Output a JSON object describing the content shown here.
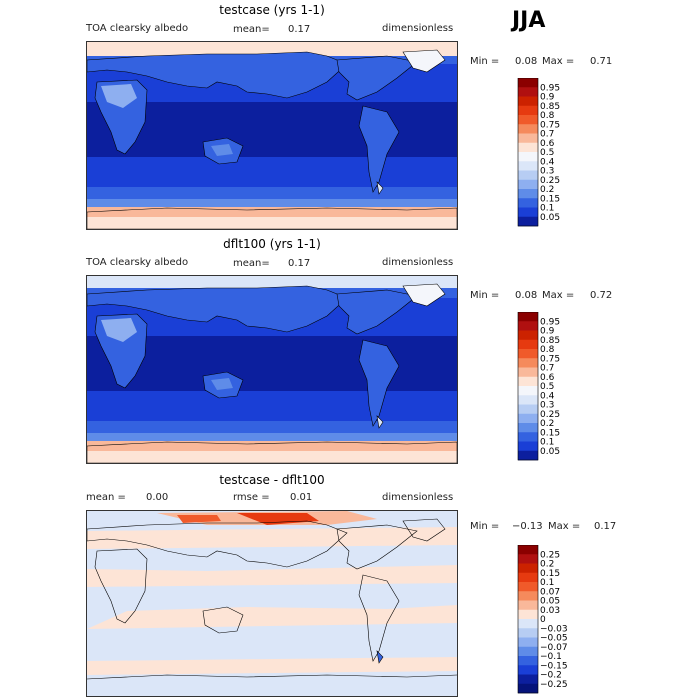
{
  "season": "JJA",
  "panels": [
    {
      "title": "testcase (yrs 1-1)",
      "variable": "TOA clearsky albedo",
      "mean_label": "mean=",
      "mean_value": "0.17",
      "units": "dimensionless",
      "min_label": "Min =",
      "min_value": "0.08",
      "max_label": "Max =",
      "max_value": "0.71",
      "colorbar": {
        "levels": [
          "0.95",
          "0.9",
          "0.85",
          "0.8",
          "0.75",
          "0.7",
          "0.6",
          "0.5",
          "0.4",
          "0.3",
          "0.25",
          "0.2",
          "0.15",
          "0.1",
          "0.05"
        ],
        "colors": [
          "#8b0000",
          "#b01010",
          "#cc2200",
          "#e63a10",
          "#f05a2a",
          "#f58a5c",
          "#f9b89a",
          "#fde4d6",
          "#f4f6fb",
          "#dbe6f8",
          "#b7cdf3",
          "#8eaff0",
          "#5f8ce8",
          "#3462e0",
          "#1a3fd6",
          "#0c1f9e"
        ]
      }
    },
    {
      "title": "dflt100 (yrs 1-1)",
      "variable": "TOA clearsky albedo",
      "mean_label": "mean=",
      "mean_value": "0.17",
      "units": "dimensionless",
      "min_label": "Min =",
      "min_value": "0.08",
      "max_label": "Max =",
      "max_value": "0.72",
      "colorbar": {
        "levels": [
          "0.95",
          "0.9",
          "0.85",
          "0.8",
          "0.75",
          "0.7",
          "0.6",
          "0.5",
          "0.4",
          "0.3",
          "0.25",
          "0.2",
          "0.15",
          "0.1",
          "0.05"
        ],
        "colors": [
          "#8b0000",
          "#b01010",
          "#cc2200",
          "#e63a10",
          "#f05a2a",
          "#f58a5c",
          "#f9b89a",
          "#fde4d6",
          "#f4f6fb",
          "#dbe6f8",
          "#b7cdf3",
          "#8eaff0",
          "#5f8ce8",
          "#3462e0",
          "#1a3fd6",
          "#0c1f9e"
        ]
      }
    },
    {
      "title": "testcase - dflt100",
      "mean_label": "mean =",
      "mean_value": "0.00",
      "rmse_label": "rmse =",
      "rmse_value": "0.01",
      "units": "dimensionless",
      "min_label": "Min =",
      "min_value": "−0.13",
      "max_label": "Max =",
      "max_value": "0.17",
      "colorbar": {
        "levels": [
          "0.25",
          "0.2",
          "0.15",
          "0.1",
          "0.07",
          "0.05",
          "0.03",
          "0",
          "−0.03",
          "−0.05",
          "−0.07",
          "−0.1",
          "−0.15",
          "−0.2",
          "−0.25"
        ],
        "colors": [
          "#8b0000",
          "#b01010",
          "#cc2200",
          "#e63a10",
          "#f05a2a",
          "#f58a5c",
          "#f9b89a",
          "#fde4d6",
          "#dbe6f8",
          "#b7cdf3",
          "#8eaff0",
          "#5f8ce8",
          "#3462e0",
          "#1a3fd6",
          "#0c1f9e",
          "#05137a"
        ]
      }
    }
  ],
  "chart_data": [
    {
      "type": "heatmap",
      "title": "testcase (yrs 1-1)",
      "field": "TOA clearsky albedo",
      "season": "JJA",
      "mean": 0.17,
      "min": 0.08,
      "max": 0.71,
      "units": "dimensionless",
      "levels": [
        0.05,
        0.1,
        0.15,
        0.2,
        0.25,
        0.3,
        0.4,
        0.5,
        0.6,
        0.7,
        0.75,
        0.8,
        0.85,
        0.9,
        0.95
      ]
    },
    {
      "type": "heatmap",
      "title": "dflt100 (yrs 1-1)",
      "field": "TOA clearsky albedo",
      "season": "JJA",
      "mean": 0.17,
      "min": 0.08,
      "max": 0.72,
      "units": "dimensionless",
      "levels": [
        0.05,
        0.1,
        0.15,
        0.2,
        0.25,
        0.3,
        0.4,
        0.5,
        0.6,
        0.7,
        0.75,
        0.8,
        0.85,
        0.9,
        0.95
      ]
    },
    {
      "type": "heatmap",
      "title": "testcase - dflt100",
      "season": "JJA",
      "mean": 0.0,
      "rmse": 0.01,
      "min": -0.13,
      "max": 0.17,
      "units": "dimensionless",
      "levels": [
        -0.25,
        -0.2,
        -0.15,
        -0.1,
        -0.07,
        -0.05,
        -0.03,
        0,
        0.03,
        0.05,
        0.07,
        0.1,
        0.15,
        0.2,
        0.25
      ]
    }
  ]
}
